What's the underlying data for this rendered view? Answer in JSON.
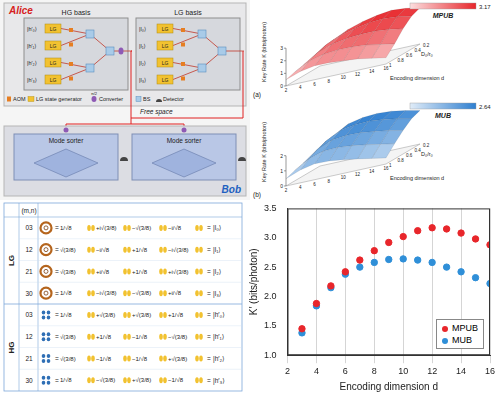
{
  "figure": {
    "diagram": {
      "alice": {
        "title": "Alice",
        "panels": [
          {
            "title": "HG basis",
            "generator": "LG",
            "outputs": [
              "|h′₀⟩",
              "|h′₁⟩",
              "|h′₂⟩",
              "|h′₃⟩"
            ]
          },
          {
            "title": "LG basis",
            "generator": "LG",
            "outputs": [
              "|l₀⟩",
              "|l₁⟩",
              "|l₂⟩",
              "|l₃⟩"
            ]
          }
        ]
      },
      "channel": "Free space",
      "bob": {
        "title": "Bob",
        "sorters": [
          "Mode sorter",
          "Mode sorter"
        ]
      },
      "legend": [
        {
          "label": "AOM"
        },
        {
          "label": "LG state generator"
        },
        {
          "symbol": "π/2",
          "label": "Converter"
        },
        {
          "label": "BS"
        },
        {
          "label": "Detector"
        }
      ]
    },
    "surfaces": [
      {
        "label": "(a)",
        "name": "MPUB",
        "color": "#e8262b",
        "z_title": "Key Rate K (bits/photon)",
        "x_title": "Encoding dimension d",
        "y_title": "D₀/r₀",
        "x": [
          2,
          4,
          6,
          8,
          10,
          12,
          14,
          16
        ],
        "y": [
          0.2,
          0.4,
          0.6,
          0.8,
          1
        ],
        "z": [
          [
            1.0,
            0.95,
            0.85,
            0.7,
            0.5
          ],
          [
            1.88,
            1.8,
            1.6,
            1.3,
            0.9
          ],
          [
            2.42,
            2.3,
            2.0,
            1.6,
            1.1
          ],
          [
            2.78,
            2.6,
            2.2,
            1.7,
            1.1
          ],
          [
            3.02,
            2.8,
            2.3,
            1.7,
            1.0
          ],
          [
            3.17,
            2.9,
            2.3,
            1.6,
            0.9
          ],
          [
            3.08,
            2.8,
            2.2,
            1.4,
            0.7
          ],
          [
            2.88,
            2.6,
            2.0,
            1.2,
            0.5
          ]
        ],
        "zticks": [
          0,
          1,
          2,
          3
        ],
        "colorbar": {
          "range": [
            0,
            3.17
          ],
          "ticks": [
            3.17
          ]
        }
      },
      {
        "label": "(b)",
        "name": "MUB",
        "color": "#2f7fd0",
        "z_title": "Key Rate K (bits/photon)",
        "x_title": "Encoding dimension d",
        "y_title": "D₀/r₀",
        "x": [
          2,
          4,
          6,
          8,
          10,
          12,
          14,
          16
        ],
        "y": [
          0.2,
          0.4,
          0.6,
          0.8,
          1
        ],
        "z": [
          [
            0.98,
            0.93,
            0.83,
            0.68,
            0.48
          ],
          [
            1.84,
            1.75,
            1.55,
            1.25,
            0.85
          ],
          [
            2.38,
            2.25,
            1.95,
            1.55,
            1.05
          ],
          [
            2.58,
            2.42,
            2.05,
            1.58,
            1.02
          ],
          [
            2.64,
            2.45,
            2.02,
            1.5,
            0.9
          ],
          [
            2.58,
            2.36,
            1.9,
            1.35,
            0.75
          ],
          [
            2.42,
            2.2,
            1.75,
            1.18,
            0.58
          ],
          [
            2.22,
            2.0,
            1.55,
            1.0,
            0.4
          ]
        ],
        "zticks": [
          0,
          1,
          2
        ],
        "colorbar": {
          "range": [
            0,
            2.64
          ],
          "ticks": [
            2.64
          ]
        }
      }
    ],
    "table": {
      "header": "(m,n)",
      "relation": "=",
      "groups": [
        {
          "name": "LG",
          "rows": [
            {
              "mn": "03",
              "terms": [
                "1/√8",
                "+i√(3/8)",
                "−√(3/8)",
                "−i/√8"
              ],
              "ket": "|l₀⟩"
            },
            {
              "mn": "12",
              "terms": [
                "√(3/8)",
                "−i/√8",
                "+1/√8",
                "−i√(3/8)"
              ],
              "ket": "|l₁⟩"
            },
            {
              "mn": "21",
              "terms": [
                "√(3/8)",
                "+i/√8",
                "+1/√8",
                "+i√(3/8)"
              ],
              "ket": "|l₂⟩"
            },
            {
              "mn": "30",
              "terms": [
                "1/√8",
                "−i√(3/8)",
                "−√(3/8)",
                "+i/√8"
              ],
              "ket": "|l₃⟩"
            }
          ]
        },
        {
          "name": "HG",
          "rows": [
            {
              "mn": "03",
              "terms": [
                "1/√8",
                "+√(3/8)",
                "+√(3/8)",
                "+1/√8"
              ],
              "ket": "|h′₀⟩"
            },
            {
              "mn": "12",
              "terms": [
                "√(3/8)",
                "+1/√8",
                "−1/√8",
                "−√(3/8)"
              ],
              "ket": "|h′₁⟩"
            },
            {
              "mn": "21",
              "terms": [
                "√(3/8)",
                "−1/√8",
                "−1/√8",
                "+√(3/8)"
              ],
              "ket": "|h′₂⟩"
            },
            {
              "mn": "30",
              "terms": [
                "1/√8",
                "−√(3/8)",
                "+√(3/8)",
                "−1/√8"
              ],
              "ket": "|h′₃⟩"
            }
          ]
        }
      ]
    }
  },
  "chart_data": {
    "type": "scatter",
    "x_label": "Encoding dimension d",
    "y_label": "K′ (bits/photon)",
    "x": [
      3,
      4,
      5,
      6,
      7,
      8,
      9,
      10,
      11,
      12,
      13,
      14,
      15,
      16
    ],
    "series": [
      {
        "name": "MPUB",
        "color": "#e8262b",
        "marker": "circle",
        "values": [
          1.45,
          1.88,
          2.18,
          2.42,
          2.62,
          2.78,
          2.92,
          3.02,
          3.12,
          3.17,
          3.15,
          3.08,
          2.98,
          2.88
        ]
      },
      {
        "name": "MUB",
        "color": "#2f8fd8",
        "marker": "circle",
        "values": [
          1.38,
          1.84,
          2.15,
          2.38,
          2.5,
          2.58,
          2.63,
          2.64,
          2.62,
          2.58,
          2.5,
          2.42,
          2.32,
          2.22
        ]
      }
    ],
    "xlim": [
      2,
      16
    ],
    "xticks": [
      2,
      4,
      6,
      8,
      10,
      12,
      14,
      16
    ],
    "ylim": [
      1,
      3.5
    ],
    "yticks": [
      {
        "value": 1,
        "label": "1.0"
      },
      1.5,
      {
        "value": 2,
        "label": "2.0"
      },
      2.5,
      {
        "value": 3,
        "label": "3.0"
      },
      3.5
    ],
    "grid": "x",
    "legend": "lower right"
  }
}
